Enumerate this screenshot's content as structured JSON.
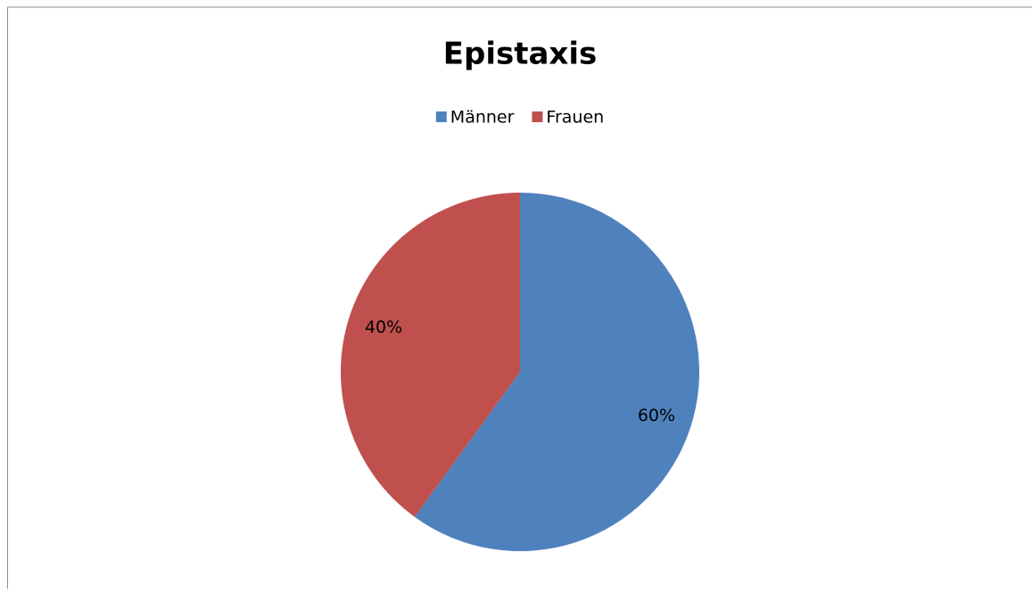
{
  "chart_data": {
    "type": "pie",
    "title": "Epistaxis",
    "categories": [
      "Männer",
      "Frauen"
    ],
    "values": [
      60,
      40
    ],
    "value_labels": [
      "60%",
      "40%"
    ],
    "colors": [
      "#4f81bd",
      "#c0504d"
    ],
    "legend": "top"
  }
}
